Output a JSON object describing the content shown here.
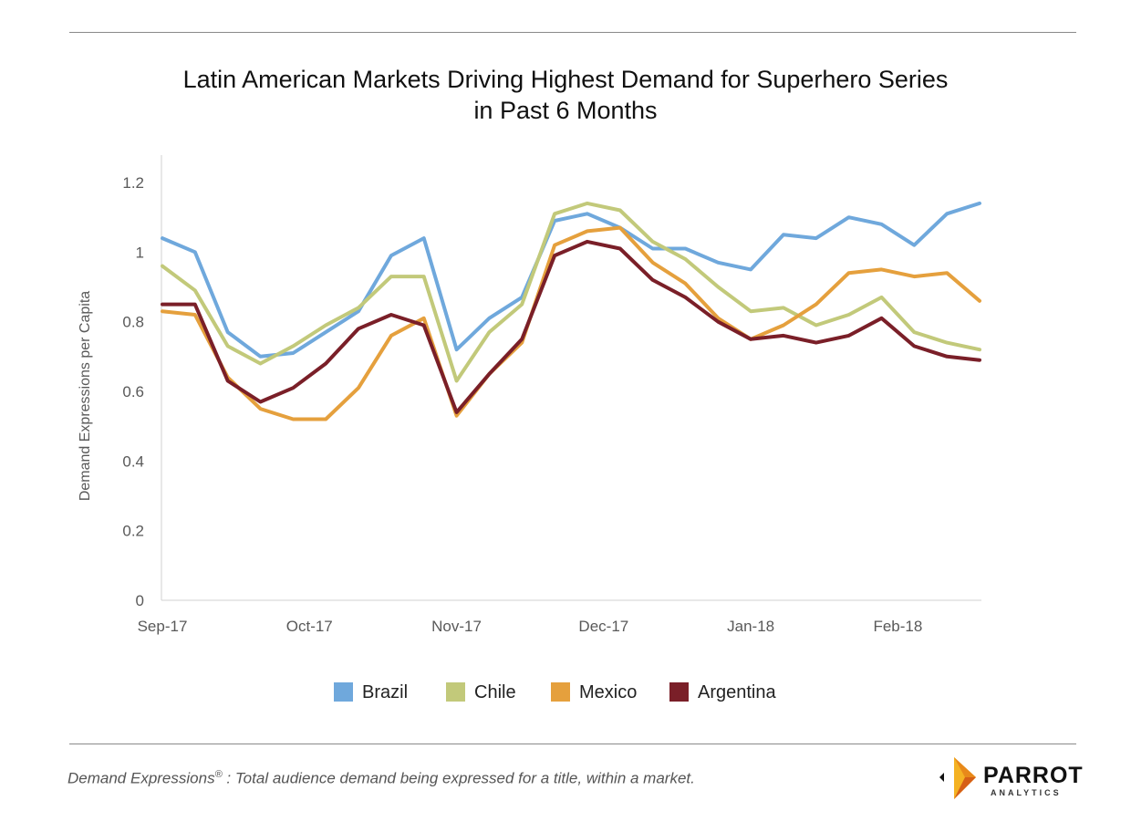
{
  "title": {
    "line1": "Latin American Markets Driving Highest Demand for Superhero Series",
    "line2": "in Past 6 Months"
  },
  "footnote": {
    "term": "Demand Expressions",
    "reg": "®",
    "text": " :  Total audience demand being expressed for a title, within a market."
  },
  "logo": {
    "word": "PARROT",
    "sub": "ANALYTICS",
    "icon": "parrot-analytics-logo-icon",
    "colors": [
      "#f4b223",
      "#e8891a",
      "#d65f16"
    ]
  },
  "chart_data": {
    "type": "line",
    "ylabel": "Demand Expressions per Capita",
    "xlabel": "",
    "ylim": [
      0,
      1.2
    ],
    "yticks": [
      "0",
      "0.2",
      "0.4",
      "0.6",
      "0.8",
      "1",
      "1.2"
    ],
    "ytick_values": [
      0,
      0.2,
      0.4,
      0.6,
      0.8,
      1,
      1.2
    ],
    "n_points": 26,
    "xtick_labels": [
      {
        "index": 0,
        "label": "Sep-17"
      },
      {
        "index": 4.5,
        "label": "Oct-17"
      },
      {
        "index": 9,
        "label": "Nov-17"
      },
      {
        "index": 13.5,
        "label": "Dec-17"
      },
      {
        "index": 18,
        "label": "Jan-18"
      },
      {
        "index": 22.5,
        "label": "Feb-18"
      }
    ],
    "grid": false,
    "legend_position": "bottom",
    "series": [
      {
        "name": "Brazil",
        "color": "#6fa8dc",
        "values": [
          1.04,
          1.0,
          0.77,
          0.7,
          0.71,
          0.77,
          0.83,
          0.99,
          1.04,
          0.72,
          0.81,
          0.87,
          1.09,
          1.11,
          1.07,
          1.01,
          1.01,
          0.97,
          0.95,
          1.05,
          1.04,
          1.1,
          1.08,
          1.02,
          1.11,
          1.14
        ]
      },
      {
        "name": "Chile",
        "color": "#c2c97a",
        "values": [
          0.96,
          0.89,
          0.73,
          0.68,
          0.73,
          0.79,
          0.84,
          0.93,
          0.93,
          0.63,
          0.77,
          0.85,
          1.11,
          1.14,
          1.12,
          1.03,
          0.98,
          0.9,
          0.83,
          0.84,
          0.79,
          0.82,
          0.87,
          0.77,
          0.74,
          0.72
        ]
      },
      {
        "name": "Mexico",
        "color": "#e5a03d",
        "values": [
          0.83,
          0.82,
          0.64,
          0.55,
          0.52,
          0.52,
          0.61,
          0.76,
          0.81,
          0.53,
          0.65,
          0.74,
          1.02,
          1.06,
          1.07,
          0.97,
          0.91,
          0.81,
          0.75,
          0.79,
          0.85,
          0.94,
          0.95,
          0.93,
          0.94,
          0.86
        ]
      },
      {
        "name": "Argentina",
        "color": "#7a1f28",
        "values": [
          0.85,
          0.85,
          0.63,
          0.57,
          0.61,
          0.68,
          0.78,
          0.82,
          0.79,
          0.54,
          0.65,
          0.75,
          0.99,
          1.03,
          1.01,
          0.92,
          0.87,
          0.8,
          0.75,
          0.76,
          0.74,
          0.76,
          0.81,
          0.73,
          0.7,
          0.69
        ]
      }
    ]
  }
}
